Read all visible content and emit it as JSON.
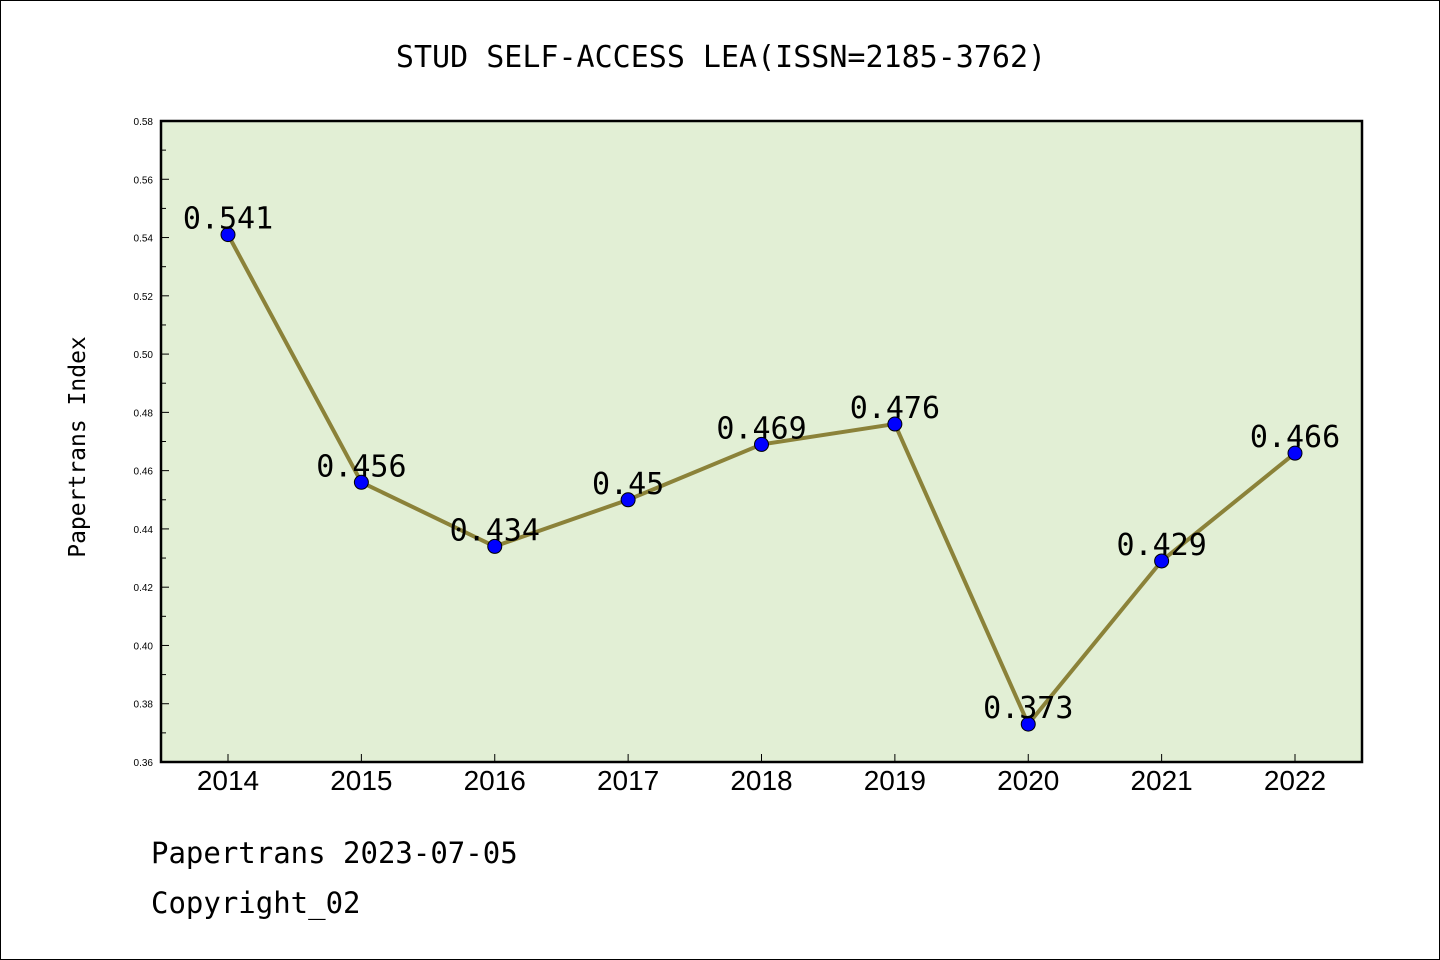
{
  "chart_data": {
    "type": "line",
    "title": "STUD SELF-ACCESS LEA(ISSN=2185-3762)",
    "xlabel": "",
    "ylabel": "Papertrans Index",
    "categories": [
      "2014",
      "2015",
      "2016",
      "2017",
      "2018",
      "2019",
      "2020",
      "2021",
      "2022"
    ],
    "series": [
      {
        "values": [
          0.541,
          0.456,
          0.434,
          0.45,
          0.469,
          0.476,
          0.373,
          0.429,
          0.466
        ],
        "data_labels": [
          "0.541",
          "0.456",
          "0.434",
          "0.45",
          "0.469",
          "0.476",
          "0.373",
          "0.429",
          "0.466"
        ]
      }
    ],
    "ylim": [
      0.36,
      0.58
    ],
    "yticks": [
      "0.36",
      "0.38",
      "0.40",
      "0.42",
      "0.44",
      "0.46",
      "0.48",
      "0.50",
      "0.52",
      "0.54",
      "0.56",
      "0.58"
    ],
    "grid": false,
    "colors": {
      "plot_background": "#e2efd5",
      "line": "#8b8239",
      "marker": "#0000ff"
    }
  },
  "footer": {
    "date_line": "Papertrans 2023-07-05",
    "copyright": "Copyright_02"
  }
}
